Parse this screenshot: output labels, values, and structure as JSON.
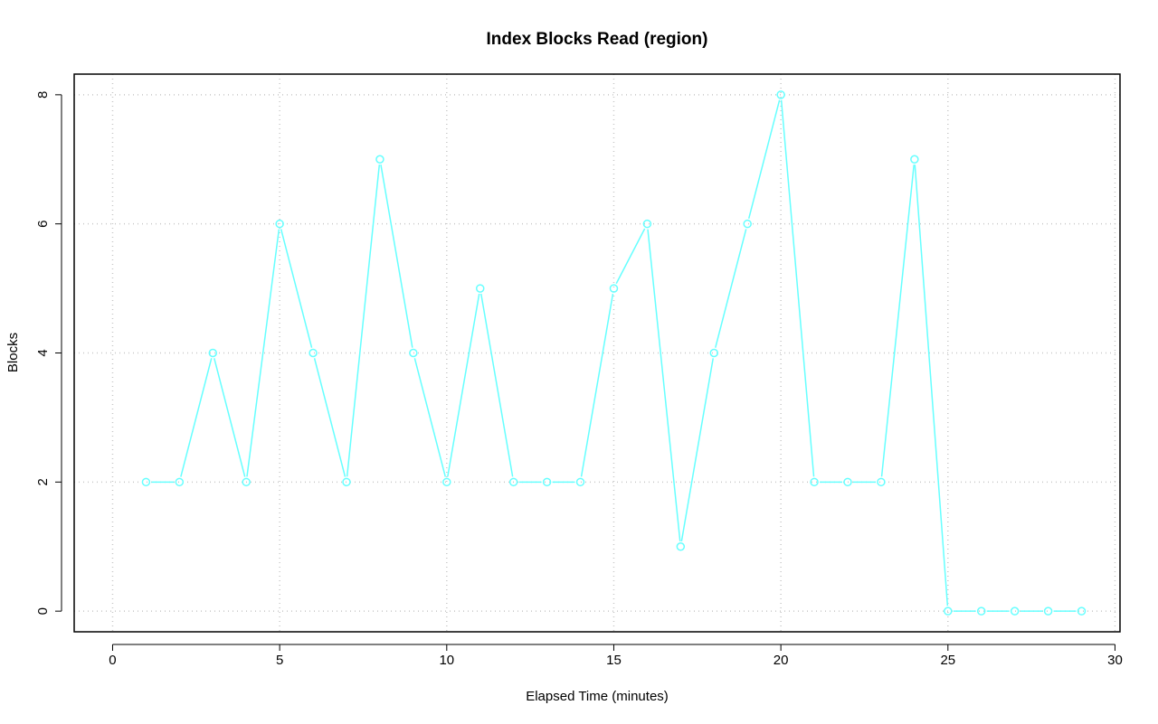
{
  "chart_data": {
    "type": "line",
    "title": "Index Blocks Read (region)",
    "xlabel": "Elapsed Time (minutes)",
    "ylabel": "Blocks",
    "xlim": [
      -1.15,
      30.15
    ],
    "ylim": [
      -0.32,
      8.32
    ],
    "x_ticks": [
      0,
      5,
      10,
      15,
      20,
      25,
      30
    ],
    "y_ticks": [
      0,
      2,
      4,
      6,
      8
    ],
    "grid": true,
    "colors": {
      "series": "#66ffff",
      "grid": "#c8c8c8",
      "axis": "#000000"
    },
    "series": [
      {
        "x": [
          1,
          2,
          3,
          4,
          5,
          6,
          7,
          8,
          9,
          10,
          11,
          12,
          13,
          14,
          15,
          16,
          17,
          18,
          19,
          20,
          21,
          22,
          23,
          24,
          25,
          26,
          27,
          28,
          29
        ],
        "values": [
          2,
          2,
          4,
          2,
          6,
          4,
          2,
          7,
          4,
          2,
          5,
          2,
          2,
          2,
          5,
          6,
          1,
          4,
          6,
          8,
          2,
          2,
          2,
          7,
          0,
          0,
          0,
          0,
          0
        ]
      }
    ]
  }
}
